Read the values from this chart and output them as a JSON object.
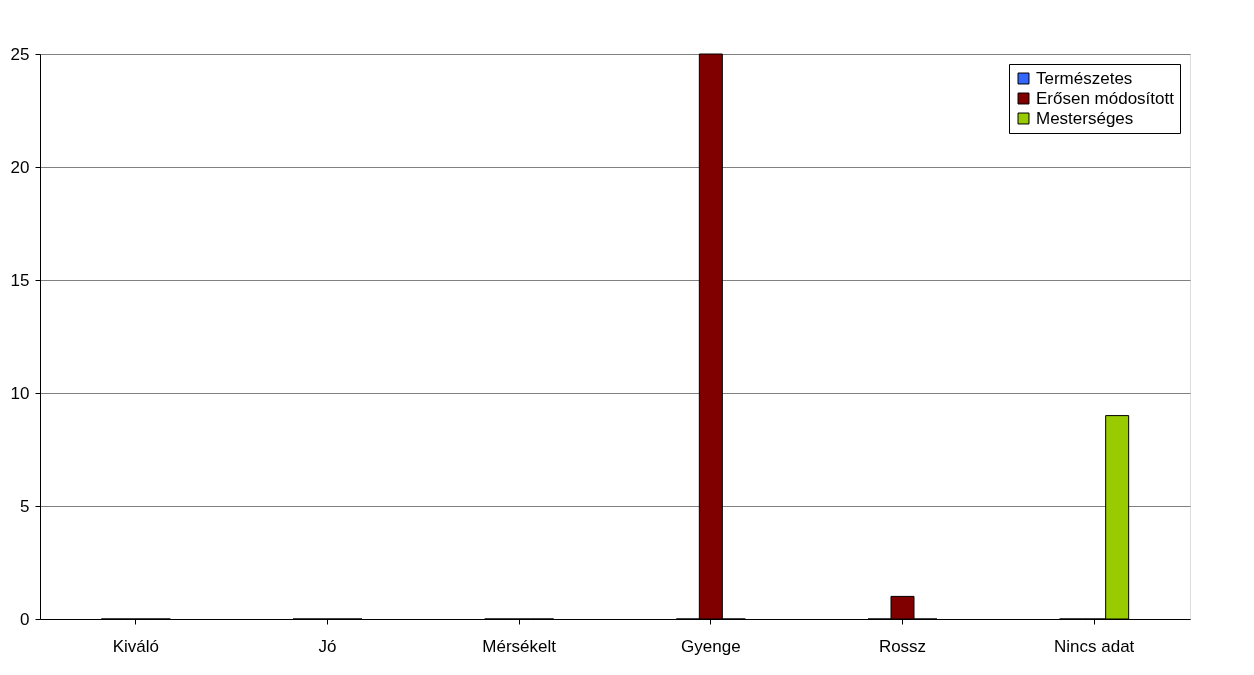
{
  "chart_data": {
    "type": "bar",
    "categories": [
      "Kiváló",
      "Jó",
      "Mérsékelt",
      "Gyenge",
      "Rossz",
      "Nincs adat"
    ],
    "series": [
      {
        "name": "Természetes",
        "color": "#3366ff",
        "values": [
          0,
          0,
          0,
          0,
          0,
          0
        ]
      },
      {
        "name": "Erősen módosított",
        "color": "#800000",
        "values": [
          0,
          0,
          0,
          25,
          1,
          0
        ]
      },
      {
        "name": "Mesterséges",
        "color": "#99cc00",
        "values": [
          0,
          0,
          0,
          0,
          0,
          9
        ]
      }
    ],
    "ylim": [
      0,
      25
    ],
    "yticks": [
      0,
      5,
      10,
      15,
      20,
      25
    ],
    "grid": "y",
    "legend": "top right"
  }
}
